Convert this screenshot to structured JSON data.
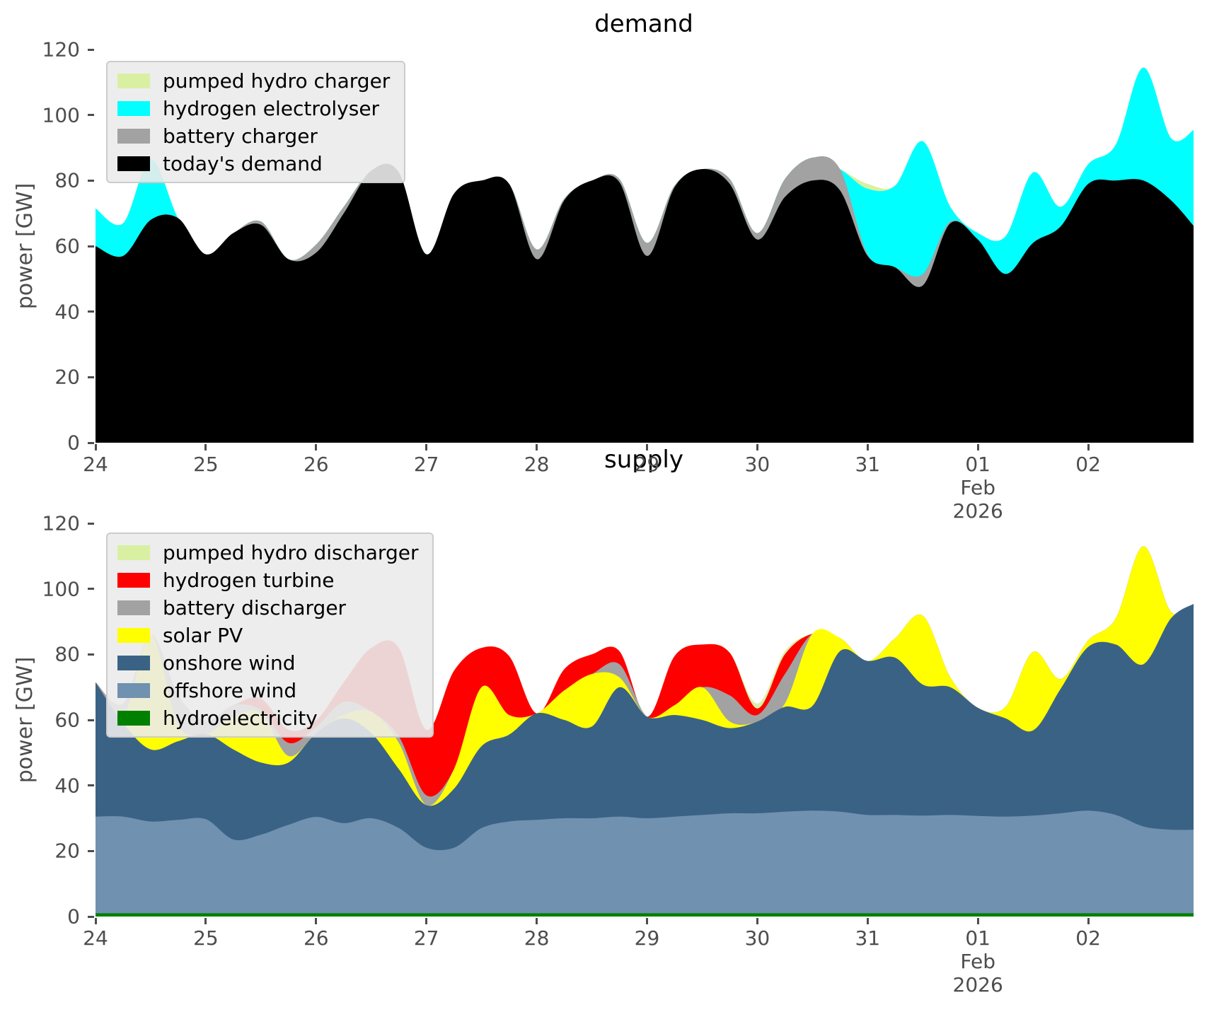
{
  "figure": {
    "background": "#ffffff",
    "tick_color": "#4d4d4d",
    "title_color": "#000000"
  },
  "chart_data": [
    {
      "type": "area",
      "stacked": true,
      "title": "demand",
      "ylabel": "power [GW]",
      "ylim": [
        0,
        120
      ],
      "y_ticks": [
        "0",
        "20",
        "40",
        "60",
        "80",
        "100",
        "120"
      ],
      "x_tick_labels": [
        "24",
        "25",
        "26",
        "27",
        "28",
        "29",
        "30",
        "31",
        "01",
        "02"
      ],
      "x_extra_label_index": 8,
      "x_extra_lines": [
        "Feb",
        "2026"
      ],
      "grid": false,
      "legend_position": "upper-left",
      "legend_top_first": [
        "pumped hydro charger",
        "hydrogen electrolyser",
        "battery charger",
        "today's demand"
      ],
      "x_days": [
        0,
        0.25,
        0.5,
        0.75,
        1,
        1.25,
        1.5,
        1.75,
        2,
        2.25,
        2.5,
        2.75,
        3,
        3.25,
        3.5,
        3.75,
        4,
        4.25,
        4.5,
        4.75,
        5,
        5.25,
        5.5,
        5.75,
        6,
        6.25,
        6.5,
        6.75,
        7,
        7.25,
        7.5,
        7.75,
        8,
        8.25,
        8.5,
        8.75,
        9,
        9.25,
        9.5,
        9.75,
        9.96
      ],
      "series": [
        {
          "name": "today's demand",
          "color": "#000000",
          "values": [
            60,
            57,
            68,
            68.5,
            57.5,
            64,
            66.5,
            56,
            58,
            70,
            83,
            82.5,
            57.5,
            76,
            80,
            79,
            56,
            74,
            80,
            79.5,
            57,
            78,
            83.5,
            79,
            62,
            75,
            80,
            77,
            57,
            53.5,
            48,
            67,
            62,
            51.5,
            61,
            66,
            79,
            80,
            80,
            74,
            66
          ]
        },
        {
          "name": "battery charger",
          "color": "#a2a2a2",
          "values": [
            0,
            0,
            0,
            0,
            0,
            0,
            1,
            0,
            2.5,
            2,
            0,
            0,
            0,
            0,
            0,
            0,
            3,
            0.5,
            0,
            1,
            4,
            0.5,
            0,
            1.5,
            2,
            5.5,
            7,
            6.5,
            0.5,
            0,
            3.5,
            0.5,
            0,
            0,
            0,
            0,
            0,
            0,
            0,
            0,
            0
          ]
        },
        {
          "name": "hydrogen electrolyser",
          "color": "#00ffff",
          "values": [
            11.5,
            10,
            18.5,
            0,
            0,
            0,
            0,
            0,
            0,
            0,
            0,
            0,
            0,
            0,
            0,
            0,
            0,
            0,
            0,
            0,
            0,
            0,
            0,
            0,
            0,
            0,
            0,
            0,
            20,
            25,
            40.5,
            4.5,
            2,
            11.5,
            21.5,
            6,
            6,
            11,
            34.5,
            19,
            29.5
          ]
        },
        {
          "name": "pumped hydro charger",
          "color": "#d9f0a3",
          "values": [
            0,
            0,
            0,
            0,
            0,
            0,
            0,
            0,
            0,
            0,
            0,
            0,
            0,
            0,
            0,
            0,
            0,
            0,
            0,
            0,
            0,
            0,
            0,
            0,
            0,
            0,
            0,
            0,
            1.5,
            0,
            0,
            0,
            0,
            0,
            0,
            0,
            0,
            0,
            0,
            0,
            0
          ]
        }
      ]
    },
    {
      "type": "area",
      "stacked": true,
      "title": "supply",
      "ylabel": "power [GW]",
      "ylim": [
        0,
        120
      ],
      "y_ticks": [
        "0",
        "20",
        "40",
        "60",
        "80",
        "100",
        "120"
      ],
      "x_tick_labels": [
        "24",
        "25",
        "26",
        "27",
        "28",
        "29",
        "30",
        "31",
        "01",
        "02"
      ],
      "x_extra_label_index": 8,
      "x_extra_lines": [
        "Feb",
        "2026"
      ],
      "grid": false,
      "legend_position": "upper-left",
      "legend_top_first": [
        "pumped hydro discharger",
        "hydrogen turbine",
        "battery discharger",
        "solar PV",
        "onshore wind",
        "offshore wind",
        "hydroelectricity"
      ],
      "x_days": [
        0,
        0.25,
        0.5,
        0.75,
        1,
        1.25,
        1.5,
        1.75,
        2,
        2.25,
        2.5,
        2.75,
        3,
        3.25,
        3.5,
        3.75,
        4,
        4.25,
        4.5,
        4.75,
        5,
        5.25,
        5.5,
        5.75,
        6,
        6.25,
        6.5,
        6.75,
        7,
        7.25,
        7.5,
        7.75,
        8,
        8.25,
        8.5,
        8.75,
        9,
        9.25,
        9.5,
        9.75,
        9.96
      ],
      "series": [
        {
          "name": "hydroelectricity",
          "color": "#008000",
          "values": [
            1,
            1,
            1,
            1,
            1,
            1,
            1,
            1,
            1,
            1,
            1,
            1,
            1,
            1,
            1,
            1,
            1,
            1,
            1,
            1,
            1,
            1,
            1,
            1,
            1,
            1,
            1,
            1,
            1,
            1,
            1,
            1,
            1,
            1,
            1,
            1,
            1,
            1,
            1,
            1,
            1
          ]
        },
        {
          "name": "offshore wind",
          "color": "#7091b0",
          "values": [
            29.5,
            29.5,
            28,
            28.5,
            28.7,
            22.5,
            24,
            27,
            29.4,
            27.5,
            29,
            26,
            20,
            20,
            26,
            28,
            28.5,
            29,
            29,
            29.5,
            29,
            29.5,
            30,
            30.5,
            30.5,
            31,
            31.3,
            31,
            30,
            30,
            29.8,
            30,
            29.7,
            29.5,
            29.8,
            30.5,
            31.3,
            30,
            26.5,
            25.5,
            25.5
          ]
        },
        {
          "name": "onshore wind",
          "color": "#3a6285",
          "values": [
            41,
            28.5,
            22,
            24,
            26,
            27.5,
            22,
            19,
            25.5,
            32,
            26,
            18,
            13,
            18,
            25,
            26.5,
            32.5,
            30,
            28,
            39.5,
            31,
            31,
            29,
            26,
            28,
            32,
            32,
            49,
            47,
            48,
            40,
            39,
            33,
            30,
            26,
            38,
            50,
            52,
            49.5,
            64.5,
            69
          ]
        },
        {
          "name": "solar PV",
          "color": "#ffff00",
          "values": [
            0,
            2,
            35,
            5,
            0,
            10,
            15,
            2,
            0,
            1,
            6.5,
            8,
            0,
            6,
            18,
            6,
            0,
            9,
            16,
            3,
            0,
            3,
            10,
            2,
            0,
            1,
            22,
            4,
            0,
            6,
            21,
            3,
            0,
            3.5,
            24,
            3,
            2,
            8,
            36,
            2,
            0
          ]
        },
        {
          "name": "battery discharger",
          "color": "#a2a2a2",
          "values": [
            0,
            4,
            0,
            9,
            4,
            3.5,
            1,
            4,
            2,
            4,
            0,
            2,
            3,
            0,
            0,
            0,
            0,
            0,
            0,
            4,
            0,
            0,
            0,
            8,
            2,
            9,
            0,
            0,
            0,
            0,
            0,
            0,
            0,
            0,
            0,
            0,
            0,
            0,
            0,
            0,
            0
          ]
        },
        {
          "name": "hydrogen turbine",
          "color": "#ff0000",
          "values": [
            0,
            0,
            0,
            0,
            0,
            0,
            3.5,
            4,
            2,
            6,
            19.5,
            27,
            20,
            30,
            12,
            18,
            0,
            6.5,
            6,
            4,
            0,
            15,
            13,
            13,
            2,
            6,
            0,
            0,
            0,
            0,
            0,
            0,
            0,
            0,
            0,
            0,
            0,
            0,
            0,
            0,
            0
          ]
        },
        {
          "name": "pumped hydro discharger",
          "color": "#d9f0a3",
          "values": [
            0,
            0,
            0,
            0,
            0,
            0,
            0,
            0,
            0,
            0,
            0,
            0,
            0,
            0,
            0,
            0,
            0,
            0,
            0,
            0,
            0,
            0,
            0,
            0,
            1.5,
            1,
            0,
            0,
            0,
            0,
            0,
            0,
            0,
            0,
            0,
            0,
            0,
            0,
            0,
            0,
            0
          ]
        }
      ]
    }
  ]
}
